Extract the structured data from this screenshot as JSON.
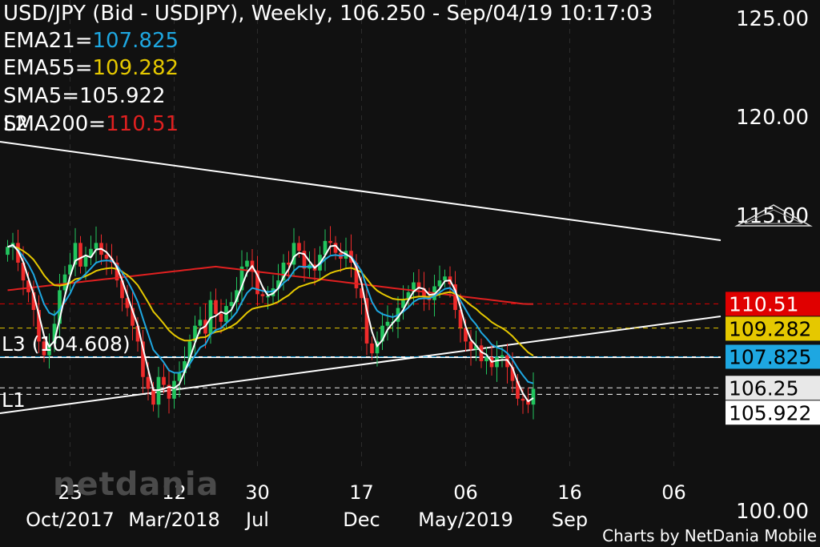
{
  "header": {
    "title": "USD/JPY (Bid - USDJPY),  Weekly, 106.250 - Sep/04/19 10:17:03",
    "indicators": [
      {
        "label": "EMA21=",
        "value": "107.825",
        "color": "#1ea7e1"
      },
      {
        "label": "EMA55=",
        "value": "109.282",
        "color": "#e5c800"
      },
      {
        "label": "SMA5=",
        "value": "105.922",
        "color": "#ffffff"
      },
      {
        "label": "SMA200=",
        "value": "110.51",
        "color": "#e02020"
      }
    ],
    "overlap_label": "L2"
  },
  "price_tags": [
    {
      "text": "110.51",
      "value": 110.51,
      "bg": "#e00000",
      "fg": "#ffffff"
    },
    {
      "text": "109.282",
      "value": 109.282,
      "bg": "#e5c800",
      "fg": "#000000"
    },
    {
      "text": "107.825",
      "value": 107.825,
      "bg": "#1ea7e1",
      "fg": "#000000"
    },
    {
      "text": "106.25",
      "value": 106.25,
      "bg": "#e8e8e8",
      "fg": "#000000"
    },
    {
      "text": "105.922",
      "value": 105.922,
      "bg": "#ffffff",
      "fg": "#000000"
    }
  ],
  "annotations": {
    "l3": "L3 (104.608)",
    "l1": "L1"
  },
  "watermark": "netdania",
  "credit": "Charts by NetDania Mobile",
  "colors": {
    "background": "#111111",
    "up": "#22c55e",
    "down": "#ef2b2b",
    "ema21": "#1ea7e1",
    "ema55": "#e5c800",
    "sma5": "#ffffff",
    "sma200": "#e02020"
  },
  "chart_data": {
    "type": "candlestick",
    "title": "USD/JPY (Bid - USDJPY),  Weekly, 106.250 - Sep/04/19 10:17:03",
    "ylim": [
      98.5,
      125.6
    ],
    "y_ticks": [
      "100.00",
      "115.00",
      "120.00",
      "125.00"
    ],
    "y_tick_values": [
      100,
      115,
      120,
      125
    ],
    "x_ticks": [
      {
        "week": 12,
        "day": "23",
        "month": "Oct/2017"
      },
      {
        "week": 32,
        "day": "12",
        "month": "Mar/2018"
      },
      {
        "week": 48,
        "day": "30",
        "month": "Jul"
      },
      {
        "week": 68,
        "day": "17",
        "month": "Dec"
      },
      {
        "week": 88,
        "day": "06",
        "month": "May/2019"
      },
      {
        "week": 108,
        "day": "16",
        "month": "Sep"
      },
      {
        "week": 128,
        "day": "06",
        "month": ""
      }
    ],
    "x_range": [
      -1,
      137
    ],
    "closes": [
      113.4,
      113.6,
      112.6,
      111.7,
      111.1,
      110.2,
      108.6,
      107.9,
      108.5,
      109.5,
      111.2,
      112.0,
      112.5,
      113.6,
      112.4,
      112.9,
      113.3,
      113.6,
      113.0,
      112.8,
      112.6,
      111.7,
      110.8,
      110.3,
      109.4,
      108.6,
      106.8,
      106.2,
      105.4,
      106.8,
      106.4,
      105.7,
      106.6,
      107.0,
      107.6,
      108.6,
      109.4,
      109.7,
      109.0,
      110.7,
      110.0,
      109.6,
      110.4,
      110.6,
      111.2,
      112.4,
      112.7,
      112.2,
      111.0,
      110.9,
      110.9,
      111.3,
      111.7,
      112.6,
      112.5,
      113.6,
      113.2,
      112.3,
      112.5,
      112.2,
      113.0,
      113.7,
      113.6,
      113.1,
      112.8,
      113.2,
      112.6,
      111.3,
      110.8,
      108.5,
      108.0,
      108.6,
      109.4,
      109.6,
      109.6,
      110.3,
      110.7,
      111.1,
      111.6,
      111.3,
      110.9,
      110.7,
      111.4,
      111.7,
      111.9,
      111.5,
      110.2,
      109.3,
      108.6,
      108.2,
      108.4,
      107.6,
      107.8,
      107.3,
      107.8,
      107.9,
      107.3,
      106.6,
      105.7,
      105.6,
      105.4,
      106.2
    ]
  }
}
